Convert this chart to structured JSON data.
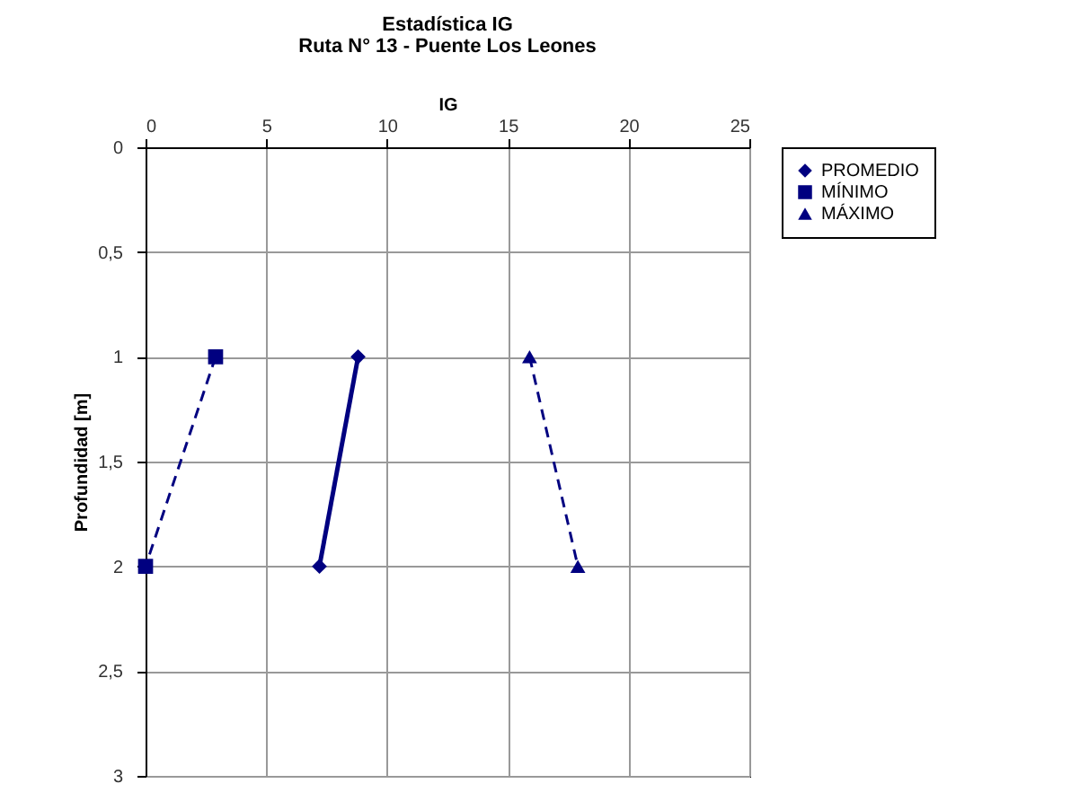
{
  "chart_data": {
    "type": "line",
    "title": "Estadística IG",
    "subtitle": "Ruta N° 13 - Puente Los Leones",
    "xlabel": "IG",
    "ylabel": "Profundidad [m]",
    "xlim": [
      0,
      25
    ],
    "xticks": [
      0,
      5,
      10,
      15,
      20,
      25
    ],
    "ylim": [
      3,
      0
    ],
    "yticks": [
      0,
      {
        "value": 0.5,
        "label": "0,5"
      },
      1,
      {
        "value": 1.5,
        "label": "1,5"
      },
      2,
      {
        "value": 2.5,
        "label": "2,5"
      },
      3
    ],
    "grid": true,
    "legend": "right",
    "series": [
      {
        "name": "PROMEDIO",
        "color": "#000080",
        "marker": "diamond",
        "line_style": "solid",
        "x": [
          8.8,
          7.2
        ],
        "values": [
          1,
          2
        ]
      },
      {
        "name": "MÍNIMO",
        "color": "#000080",
        "marker": "square",
        "line_style": "dashed",
        "x": [
          2.9,
          0
        ],
        "values": [
          1,
          2
        ]
      },
      {
        "name": "MÁXIMO",
        "color": "#000080",
        "marker": "triangle",
        "line_style": "dashed",
        "x": [
          15.9,
          17.9
        ],
        "values": [
          1,
          2
        ]
      }
    ]
  }
}
